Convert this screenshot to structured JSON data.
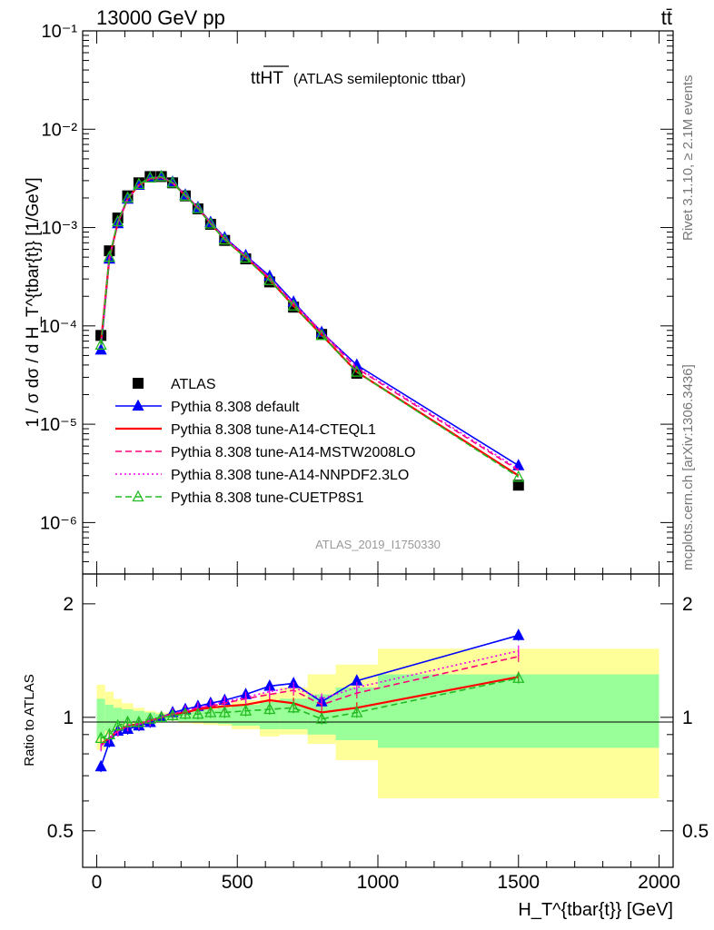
{
  "header": {
    "energy": "13000 GeV pp",
    "process": "tt̄"
  },
  "plot_title": {
    "main": "ttHT",
    "sub": "(ATLAS semileptonic ttbar)"
  },
  "side_labels": {
    "rivet": "Rivet 3.1.10, ≥ 2.1M events",
    "mcplots": "mcplots.cern.ch [arXiv:1306.3436]"
  },
  "analysis_id": "ATLAS_2019_I1750330",
  "chart_data": [
    {
      "type": "line",
      "panel": "main",
      "ylabel": "1 / σ dσ / d H_T^{tbar{t}} [1/GeV]",
      "yscale": "log",
      "xlim": [
        -50,
        2050
      ],
      "ylim": [
        3e-07,
        0.1
      ],
      "yticks": [
        {
          "value": 1e-06,
          "label": "10⁻⁶"
        },
        {
          "value": 1e-05,
          "label": "10⁻⁵"
        },
        {
          "value": 0.0001,
          "label": "10⁻⁴"
        },
        {
          "value": 0.001,
          "label": "10⁻³"
        },
        {
          "value": 0.01,
          "label": "10⁻²"
        },
        {
          "value": 0.1,
          "label": "10⁻¹"
        }
      ],
      "legend_position": "middle-left",
      "x": [
        15,
        45,
        75,
        110,
        150,
        190,
        230,
        270,
        315,
        360,
        405,
        455,
        530,
        615,
        700,
        800,
        925,
        1500
      ],
      "series": [
        {
          "name": "ATLAS",
          "color": "#000000",
          "style": "square",
          "values": [
            8e-05,
            0.00058,
            0.00125,
            0.0021,
            0.00285,
            0.0033,
            0.0033,
            0.00285,
            0.0021,
            0.00155,
            0.00108,
            0.00074,
            0.00048,
            0.00028,
            0.000155,
            8.2e-05,
            3.3e-05,
            2.4e-06
          ]
        },
        {
          "name": "Pythia 8.308 default",
          "color": "#0000ff",
          "style": "solid-triangle",
          "values": [
            5.7e-05,
            0.00048,
            0.0011,
            0.00195,
            0.0027,
            0.0032,
            0.0033,
            0.0029,
            0.00215,
            0.0016,
            0.00113,
            0.00079,
            0.00052,
            0.00032,
            0.000175,
            8.6e-05,
            4e-05,
            3.8e-06
          ]
        },
        {
          "name": "Pythia 8.308 tune-A14-CTEQL1",
          "color": "#ff0000",
          "style": "solid",
          "values": [
            6.7e-05,
            0.00049,
            0.00112,
            0.00197,
            0.0027,
            0.00315,
            0.00325,
            0.00285,
            0.00212,
            0.00158,
            0.0011,
            0.00076,
            0.0005,
            0.000295,
            0.00016,
            8.1e-05,
            3.4e-05,
            3e-06
          ]
        },
        {
          "name": "Pythia 8.308 tune-A14-MSTW2008LO",
          "color": "#ff0077",
          "style": "dashed",
          "values": [
            6.6e-05,
            0.00049,
            0.00112,
            0.00197,
            0.0027,
            0.00315,
            0.00325,
            0.00286,
            0.00213,
            0.00159,
            0.00111,
            0.00077,
            0.00051,
            0.000305,
            0.000168,
            8.6e-05,
            3.7e-05,
            3.4e-06
          ]
        },
        {
          "name": "Pythia 8.308 tune-A14-NNPDF2.3LO",
          "color": "#ee00ee",
          "style": "dotted",
          "values": [
            6.6e-05,
            0.00049,
            0.00112,
            0.00197,
            0.0027,
            0.00315,
            0.00325,
            0.00287,
            0.00214,
            0.0016,
            0.00112,
            0.00078,
            0.000515,
            0.00031,
            0.00017,
            8.8e-05,
            3.8e-05,
            3.5e-06
          ]
        },
        {
          "name": "Pythia 8.308 tune-CUETP8S1",
          "color": "#22bb22",
          "style": "dashed-open-triangle",
          "values": [
            6.4e-05,
            0.0005,
            0.00115,
            0.002,
            0.00275,
            0.0032,
            0.0033,
            0.00285,
            0.0021,
            0.00156,
            0.00109,
            0.00075,
            0.00049,
            0.00029,
            0.00016,
            8e-05,
            3.4e-05,
            2.9e-06
          ]
        }
      ]
    },
    {
      "type": "line",
      "panel": "ratio",
      "ylabel": "Ratio to ATLAS",
      "xlabel": "H_T^{tbar{t}} [GeV]",
      "yscale": "log",
      "xlim": [
        -50,
        2050
      ],
      "ylim": [
        0.4,
        2.4
      ],
      "yticks": [
        {
          "value": 0.5,
          "label": "0.5"
        },
        {
          "value": 1,
          "label": "1"
        },
        {
          "value": 2,
          "label": "2"
        }
      ],
      "xticks": [
        {
          "value": 0,
          "label": "0"
        },
        {
          "value": 500,
          "label": "500"
        },
        {
          "value": 1000,
          "label": "1000"
        },
        {
          "value": 1500,
          "label": "1500"
        },
        {
          "value": 2000,
          "label": "2000"
        }
      ],
      "bands": {
        "edges": [
          0,
          30,
          60,
          90,
          130,
          170,
          210,
          250,
          290,
          340,
          380,
          430,
          480,
          580,
          650,
          750,
          850,
          1000,
          2000
        ],
        "inner_low": [
          0.88,
          0.92,
          0.94,
          0.96,
          0.97,
          0.98,
          0.985,
          0.985,
          0.975,
          0.97,
          0.965,
          0.96,
          0.95,
          0.93,
          0.93,
          0.9,
          0.87,
          0.83
        ],
        "inner_high": [
          1.12,
          1.08,
          1.06,
          1.05,
          1.04,
          1.03,
          1.02,
          1.02,
          1.03,
          1.04,
          1.05,
          1.06,
          1.08,
          1.1,
          1.12,
          1.15,
          1.2,
          1.3
        ],
        "outer_low": [
          0.82,
          0.9,
          0.92,
          0.94,
          0.96,
          0.97,
          0.98,
          0.98,
          0.965,
          0.96,
          0.955,
          0.95,
          0.93,
          0.89,
          0.9,
          0.85,
          0.77,
          0.61
        ],
        "outer_high": [
          1.22,
          1.17,
          1.12,
          1.09,
          1.06,
          1.04,
          1.03,
          1.03,
          1.04,
          1.05,
          1.06,
          1.08,
          1.11,
          1.16,
          1.2,
          1.3,
          1.38,
          1.52
        ]
      },
      "x": [
        15,
        45,
        75,
        110,
        150,
        190,
        230,
        270,
        315,
        360,
        405,
        455,
        530,
        615,
        700,
        800,
        925,
        1500
      ],
      "series": [
        {
          "name": "Pythia 8.308 default",
          "color": "#0000ff",
          "style": "solid-triangle",
          "values": [
            0.74,
            0.86,
            0.92,
            0.93,
            0.95,
            0.97,
            1.0,
            1.03,
            1.05,
            1.07,
            1.09,
            1.11,
            1.15,
            1.21,
            1.23,
            1.1,
            1.25,
            1.65
          ]
        },
        {
          "name": "Pythia 8.308 tune-A14-CTEQL1",
          "color": "#ff0000",
          "style": "solid",
          "values": [
            0.85,
            0.88,
            0.92,
            0.95,
            0.96,
            0.98,
            1.0,
            1.02,
            1.03,
            1.05,
            1.06,
            1.07,
            1.08,
            1.11,
            1.09,
            1.03,
            1.06,
            1.28
          ]
        },
        {
          "name": "Pythia 8.308 tune-A14-MSTW2008LO",
          "color": "#ff0077",
          "style": "dashed",
          "values": [
            0.84,
            0.88,
            0.92,
            0.95,
            0.96,
            0.98,
            1.0,
            1.02,
            1.04,
            1.06,
            1.07,
            1.09,
            1.12,
            1.15,
            1.18,
            1.08,
            1.16,
            1.45
          ]
        },
        {
          "name": "Pythia 8.308 tune-A14-NNPDF2.3LO",
          "color": "#ee00ee",
          "style": "dotted",
          "values": [
            0.84,
            0.88,
            0.92,
            0.95,
            0.96,
            0.98,
            1.0,
            1.02,
            1.04,
            1.06,
            1.08,
            1.1,
            1.13,
            1.17,
            1.2,
            1.12,
            1.2,
            1.5
          ]
        },
        {
          "name": "Pythia 8.308 tune-CUETP8S1",
          "color": "#22bb22",
          "style": "dashed-open-triangle",
          "values": [
            0.88,
            0.9,
            0.95,
            0.97,
            0.97,
            0.99,
            1.0,
            1.01,
            1.02,
            1.02,
            1.03,
            1.03,
            1.04,
            1.05,
            1.06,
            0.99,
            1.03,
            1.27
          ]
        }
      ]
    }
  ]
}
